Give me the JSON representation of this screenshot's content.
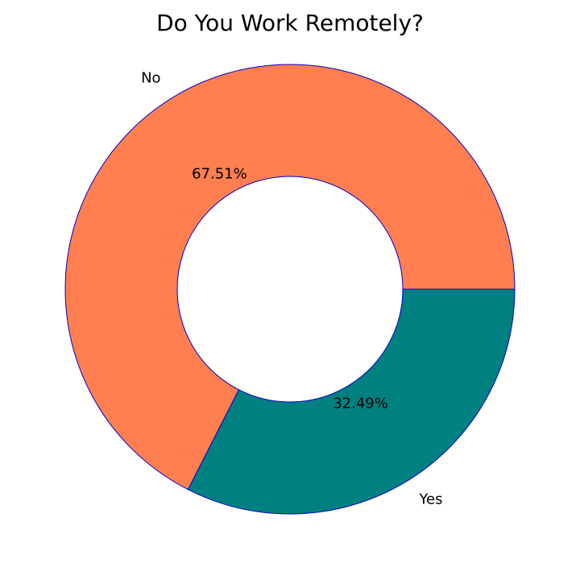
{
  "chart_data": {
    "type": "pie",
    "donut": true,
    "title": "Do You Work Remotely?",
    "categories": [
      "No",
      "Yes"
    ],
    "values": [
      67.51,
      32.49
    ],
    "value_labels": [
      "67.51%",
      "32.49%"
    ],
    "colors": [
      "#ff7f50",
      "#008080"
    ],
    "edge_color": "#0000cd",
    "start_angle_deg": 0,
    "direction": "counterclockwise",
    "legend": "none"
  }
}
